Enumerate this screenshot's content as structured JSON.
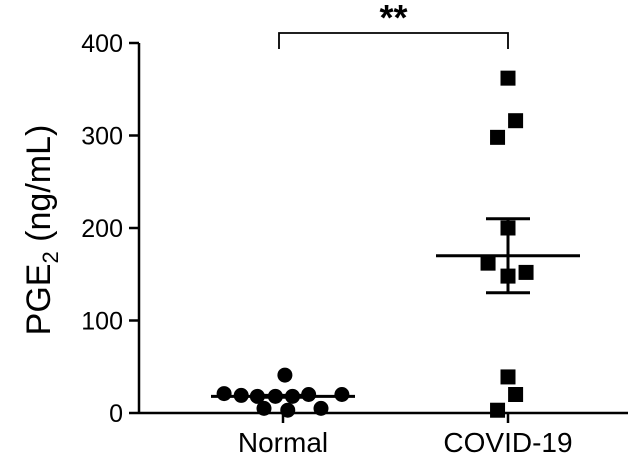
{
  "chart_data": {
    "type": "scatter",
    "title": "",
    "xlabel": "",
    "ylabel": {
      "main": "PGE",
      "subscript": "2",
      "suffix": " (ng/mL)"
    },
    "ylim": [
      0,
      400
    ],
    "yticks": [
      0,
      100,
      200,
      300,
      400
    ],
    "categories": [
      "Normal",
      "COVID-19"
    ],
    "groups": [
      {
        "category": "Normal",
        "marker": "circle",
        "points": [
          {
            "offset": -0.62,
            "y": 21
          },
          {
            "offset": -0.44,
            "y": 19
          },
          {
            "offset": -0.27,
            "y": 18
          },
          {
            "offset": -0.2,
            "y": 5
          },
          {
            "offset": -0.08,
            "y": 18
          },
          {
            "offset": 0.02,
            "y": 41
          },
          {
            "offset": 0.05,
            "y": 3
          },
          {
            "offset": 0.1,
            "y": 18
          },
          {
            "offset": 0.27,
            "y": 20
          },
          {
            "offset": 0.4,
            "y": 5
          },
          {
            "offset": 0.62,
            "y": 20
          }
        ],
        "mean": 18,
        "error_low": 17,
        "error_high": 19
      },
      {
        "category": "COVID-19",
        "marker": "square",
        "points": [
          {
            "offset": 0.0,
            "y": 362
          },
          {
            "offset": 0.08,
            "y": 316
          },
          {
            "offset": -0.11,
            "y": 298
          },
          {
            "offset": 0.0,
            "y": 200
          },
          {
            "offset": -0.21,
            "y": 162
          },
          {
            "offset": 0.19,
            "y": 152
          },
          {
            "offset": 0.0,
            "y": 148
          },
          {
            "offset": 0.0,
            "y": 39
          },
          {
            "offset": 0.08,
            "y": 20
          },
          {
            "offset": -0.11,
            "y": 3
          }
        ],
        "mean": 170,
        "error_low": 130,
        "error_high": 210
      }
    ],
    "significance": {
      "label": "**",
      "between": [
        "Normal",
        "COVID-19"
      ]
    }
  }
}
